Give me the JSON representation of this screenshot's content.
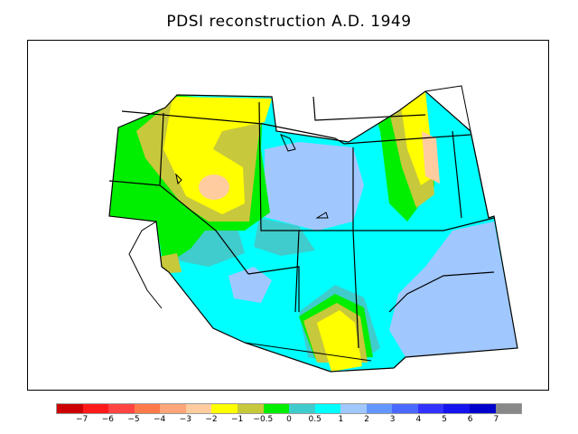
{
  "title": "PDSI reconstruction A.D. 1949",
  "legend": {
    "colors": [
      "#cc0000",
      "#ff1a1a",
      "#ff4444",
      "#ff7a4a",
      "#ffa57a",
      "#ffcca0",
      "#ffff00",
      "#c8c83c",
      "#00ee00",
      "#40cccc",
      "#00ffff",
      "#a0c8ff",
      "#6496ff",
      "#4a6aff",
      "#3232ff",
      "#1414ee",
      "#0000cc",
      "#888888"
    ],
    "tick_labels": [
      "−7",
      "−6",
      "−5",
      "−4",
      "−3",
      "−2",
      "−1",
      "−0.5",
      "0",
      "0.5",
      "1",
      "2",
      "3",
      "4",
      "5",
      "6",
      "7"
    ]
  }
}
